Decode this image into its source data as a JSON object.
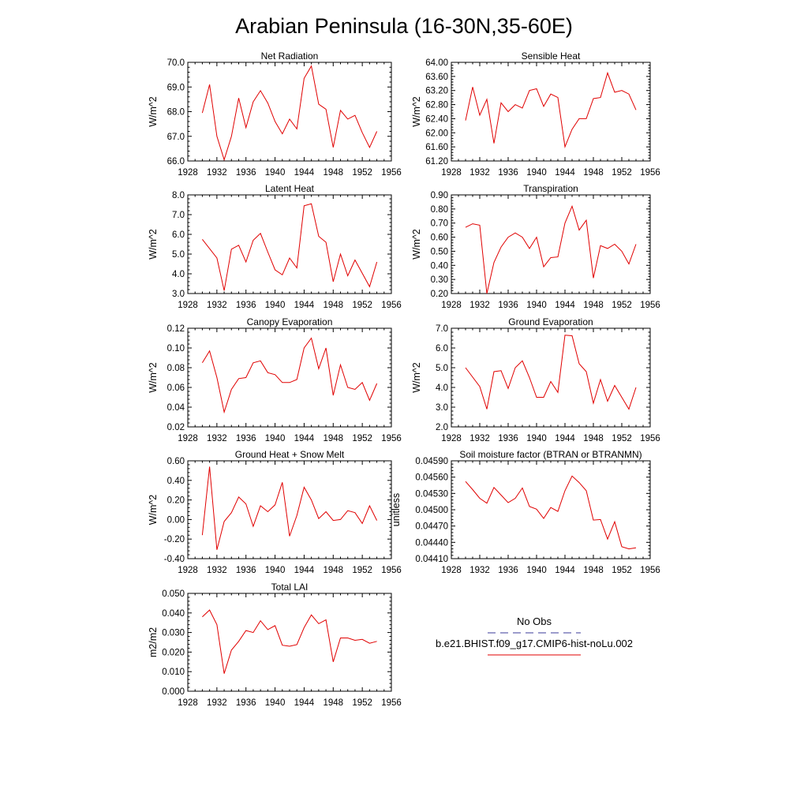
{
  "title": "Arabian Peninsula (16-30N,35-60E)",
  "chart_data": [
    {
      "type": "line",
      "title": "Net Radiation",
      "ylabel": "W/m^2",
      "xlim": [
        1928,
        1956
      ],
      "ylim": [
        66.0,
        70.0
      ],
      "xticks": [
        "1928",
        "1932",
        "1936",
        "1940",
        "1944",
        "1948",
        "1952",
        "1956"
      ],
      "yticks": [
        "66.0",
        "67.0",
        "68.0",
        "69.0",
        "70.0"
      ],
      "x": [
        1930,
        1931,
        1932,
        1933,
        1934,
        1935,
        1936,
        1937,
        1938,
        1939,
        1940,
        1941,
        1942,
        1943,
        1944,
        1945,
        1946,
        1947,
        1948,
        1949,
        1950,
        1951,
        1952,
        1953,
        1954
      ],
      "series": [
        {
          "name": "b.e21.BHIST.f09_g17.CMIP6-hist-noLu.002",
          "values": [
            67.95,
            69.1,
            67.0,
            66.05,
            67.0,
            68.55,
            67.35,
            68.4,
            68.85,
            68.35,
            67.6,
            67.1,
            67.7,
            67.3,
            69.35,
            69.85,
            68.3,
            68.1,
            66.55,
            68.05,
            67.7,
            67.85,
            67.15,
            66.55,
            67.2
          ]
        }
      ]
    },
    {
      "type": "line",
      "title": "Sensible Heat",
      "ylabel": "W/m^2",
      "xlim": [
        1928,
        1956
      ],
      "ylim": [
        61.2,
        64.0
      ],
      "xticks": [
        "1928",
        "1932",
        "1936",
        "1940",
        "1944",
        "1948",
        "1952",
        "1956"
      ],
      "yticks": [
        "61.20",
        "61.60",
        "62.00",
        "62.40",
        "62.80",
        "63.20",
        "63.60",
        "64.00"
      ],
      "x": [
        1930,
        1931,
        1932,
        1933,
        1934,
        1935,
        1936,
        1937,
        1938,
        1939,
        1940,
        1941,
        1942,
        1943,
        1944,
        1945,
        1946,
        1947,
        1948,
        1949,
        1950,
        1951,
        1952,
        1953,
        1954
      ],
      "series": [
        {
          "name": "b.e21.BHIST.f09_g17.CMIP6-hist-noLu.002",
          "values": [
            62.35,
            63.3,
            62.5,
            62.95,
            61.7,
            62.85,
            62.6,
            62.8,
            62.7,
            63.2,
            63.25,
            62.75,
            63.1,
            63.0,
            61.6,
            62.1,
            62.4,
            62.4,
            62.97,
            63.0,
            63.7,
            63.15,
            63.2,
            63.1,
            62.65
          ]
        }
      ]
    },
    {
      "type": "line",
      "title": "Latent Heat",
      "ylabel": "W/m^2",
      "xlim": [
        1928,
        1956
      ],
      "ylim": [
        3.0,
        8.0
      ],
      "xticks": [
        "1928",
        "1932",
        "1936",
        "1940",
        "1944",
        "1948",
        "1952",
        "1956"
      ],
      "yticks": [
        "3.0",
        "4.0",
        "5.0",
        "6.0",
        "7.0",
        "8.0"
      ],
      "x": [
        1930,
        1932,
        1933,
        1934,
        1935,
        1936,
        1937,
        1938,
        1939,
        1940,
        1941,
        1942,
        1943,
        1944,
        1945,
        1946,
        1947,
        1948,
        1949,
        1950,
        1951,
        1953,
        1954
      ],
      "series": [
        {
          "name": "b.e21.BHIST.f09_g17.CMIP6-hist-noLu.002",
          "values": [
            5.75,
            4.8,
            3.15,
            5.25,
            5.45,
            4.6,
            5.7,
            6.05,
            5.1,
            4.2,
            3.95,
            4.8,
            4.3,
            7.45,
            7.55,
            5.9,
            5.6,
            3.6,
            5.0,
            3.9,
            4.7,
            3.35,
            4.6
          ]
        }
      ]
    },
    {
      "type": "line",
      "title": "Transpiration",
      "ylabel": "W/m^2",
      "xlim": [
        1928,
        1956
      ],
      "ylim": [
        0.2,
        0.9
      ],
      "xticks": [
        "1928",
        "1932",
        "1936",
        "1940",
        "1944",
        "1948",
        "1952",
        "1956"
      ],
      "yticks": [
        "0.20",
        "0.30",
        "0.40",
        "0.50",
        "0.60",
        "0.70",
        "0.80",
        "0.90"
      ],
      "x": [
        1930,
        1931,
        1932,
        1933,
        1934,
        1935,
        1936,
        1937,
        1938,
        1939,
        1940,
        1941,
        1942,
        1943,
        1944,
        1945,
        1946,
        1947,
        1948,
        1949,
        1950,
        1951,
        1952,
        1953,
        1954
      ],
      "series": [
        {
          "name": "b.e21.BHIST.f09_g17.CMIP6-hist-noLu.002",
          "values": [
            0.67,
            0.695,
            0.685,
            0.2,
            0.42,
            0.53,
            0.6,
            0.63,
            0.6,
            0.52,
            0.6,
            0.39,
            0.455,
            0.46,
            0.7,
            0.82,
            0.65,
            0.72,
            0.31,
            0.54,
            0.52,
            0.55,
            0.5,
            0.41,
            0.55
          ]
        }
      ]
    },
    {
      "type": "line",
      "title": "Canopy Evaporation",
      "ylabel": "W/m^2",
      "xlim": [
        1928,
        1956
      ],
      "ylim": [
        0.02,
        0.12
      ],
      "xticks": [
        "1928",
        "1932",
        "1936",
        "1940",
        "1944",
        "1948",
        "1952",
        "1956"
      ],
      "yticks": [
        "0.02",
        "0.04",
        "0.06",
        "0.08",
        "0.10",
        "0.12"
      ],
      "x": [
        1930,
        1931,
        1932,
        1933,
        1934,
        1935,
        1936,
        1937,
        1938,
        1939,
        1940,
        1941,
        1942,
        1943,
        1944,
        1945,
        1946,
        1947,
        1948,
        1949,
        1950,
        1951,
        1952,
        1953,
        1954
      ],
      "series": [
        {
          "name": "b.e21.BHIST.f09_g17.CMIP6-hist-noLu.002",
          "values": [
            0.085,
            0.097,
            0.07,
            0.035,
            0.058,
            0.069,
            0.07,
            0.085,
            0.087,
            0.075,
            0.073,
            0.065,
            0.065,
            0.068,
            0.1,
            0.11,
            0.079,
            0.1,
            0.052,
            0.083,
            0.06,
            0.058,
            0.065,
            0.047,
            0.064
          ]
        }
      ]
    },
    {
      "type": "line",
      "title": "Ground Evaporation",
      "ylabel": "W/m^2",
      "xlim": [
        1928,
        1956
      ],
      "ylim": [
        2.0,
        7.0
      ],
      "xticks": [
        "1928",
        "1932",
        "1936",
        "1940",
        "1944",
        "1948",
        "1952",
        "1956"
      ],
      "yticks": [
        "2.0",
        "3.0",
        "4.0",
        "5.0",
        "6.0",
        "7.0"
      ],
      "x": [
        1930,
        1932,
        1933,
        1934,
        1935,
        1936,
        1937,
        1938,
        1939,
        1940,
        1941,
        1942,
        1943,
        1944,
        1945,
        1946,
        1947,
        1948,
        1949,
        1950,
        1951,
        1953,
        1954
      ],
      "series": [
        {
          "name": "b.e21.BHIST.f09_g17.CMIP6-hist-noLu.002",
          "values": [
            5.0,
            4.05,
            2.9,
            4.8,
            4.85,
            3.95,
            5.0,
            5.35,
            4.5,
            3.5,
            3.5,
            4.3,
            3.75,
            6.65,
            6.62,
            5.2,
            4.8,
            3.2,
            4.4,
            3.3,
            4.1,
            2.9,
            4.0
          ]
        }
      ]
    },
    {
      "type": "line",
      "title": "Ground Heat + Snow Melt",
      "ylabel": "W/m^2",
      "xlim": [
        1928,
        1956
      ],
      "ylim": [
        -0.4,
        0.6
      ],
      "xticks": [
        "1928",
        "1932",
        "1936",
        "1940",
        "1944",
        "1948",
        "1952",
        "1956"
      ],
      "yticks": [
        "-0.40",
        "-0.20",
        "0.00",
        "0.20",
        "0.40",
        "0.60"
      ],
      "x": [
        1930,
        1931,
        1932,
        1933,
        1934,
        1935,
        1936,
        1937,
        1938,
        1939,
        1940,
        1941,
        1942,
        1943,
        1944,
        1945,
        1946,
        1947,
        1948,
        1949,
        1950,
        1951,
        1952,
        1953,
        1954
      ],
      "series": [
        {
          "name": "b.e21.BHIST.f09_g17.CMIP6-hist-noLu.002",
          "values": [
            -0.16,
            0.54,
            -0.31,
            -0.02,
            0.07,
            0.23,
            0.16,
            -0.07,
            0.14,
            0.08,
            0.15,
            0.38,
            -0.17,
            0.04,
            0.33,
            0.2,
            0.01,
            0.08,
            -0.01,
            0.0,
            0.09,
            0.07,
            -0.04,
            0.14,
            -0.01
          ]
        }
      ]
    },
    {
      "type": "line",
      "title": "Soil moisture factor (BTRAN or BTRANMN)",
      "ylabel": "unitless",
      "xlim": [
        1928,
        1956
      ],
      "ylim": [
        0.0441,
        0.0459
      ],
      "xticks": [
        "1928",
        "1932",
        "1936",
        "1940",
        "1944",
        "1948",
        "1952",
        "1956"
      ],
      "yticks": [
        "0.04410",
        "0.04440",
        "0.04470",
        "0.04500",
        "0.04530",
        "0.04560",
        "0.04590"
      ],
      "x": [
        1930,
        1931,
        1932,
        1933,
        1934,
        1935,
        1936,
        1937,
        1938,
        1939,
        1940,
        1941,
        1942,
        1943,
        1944,
        1945,
        1946,
        1947,
        1948,
        1949,
        1950,
        1951,
        1952,
        1953,
        1954
      ],
      "series": [
        {
          "name": "b.e21.BHIST.f09_g17.CMIP6-hist-noLu.002",
          "values": [
            0.04552,
            0.04537,
            0.04521,
            0.04512,
            0.04541,
            0.04527,
            0.04513,
            0.04521,
            0.0454,
            0.04506,
            0.04501,
            0.04484,
            0.04504,
            0.04497,
            0.04535,
            0.04562,
            0.0455,
            0.04535,
            0.04481,
            0.04482,
            0.04446,
            0.04478,
            0.04432,
            0.04428,
            0.0443
          ]
        }
      ]
    },
    {
      "type": "line",
      "title": "Total LAI",
      "ylabel": "m2/m2",
      "xlim": [
        1928,
        1956
      ],
      "ylim": [
        0.0,
        0.05
      ],
      "xticks": [
        "1928",
        "1932",
        "1936",
        "1940",
        "1944",
        "1948",
        "1952",
        "1956"
      ],
      "yticks": [
        "0.000",
        "0.010",
        "0.020",
        "0.030",
        "0.040",
        "0.050"
      ],
      "x": [
        1930,
        1931,
        1932,
        1933,
        1934,
        1935,
        1936,
        1937,
        1938,
        1939,
        1940,
        1941,
        1942,
        1943,
        1944,
        1945,
        1946,
        1947,
        1948,
        1949,
        1950,
        1951,
        1952,
        1953,
        1954
      ],
      "series": [
        {
          "name": "b.e21.BHIST.f09_g17.CMIP6-hist-noLu.002",
          "values": [
            0.038,
            0.0415,
            0.034,
            0.009,
            0.021,
            0.0255,
            0.031,
            0.03,
            0.036,
            0.0315,
            0.0335,
            0.0235,
            0.023,
            0.0238,
            0.0325,
            0.039,
            0.0345,
            0.0365,
            0.015,
            0.0272,
            0.0272,
            0.026,
            0.0265,
            0.0245,
            0.0255
          ]
        }
      ]
    }
  ],
  "legend": {
    "obs_label": "No Obs",
    "model_label": "b.e21.BHIST.f09_g17.CMIP6-hist-noLu.002",
    "obs_color": "#3a3a9a",
    "model_color": "#e00000"
  }
}
